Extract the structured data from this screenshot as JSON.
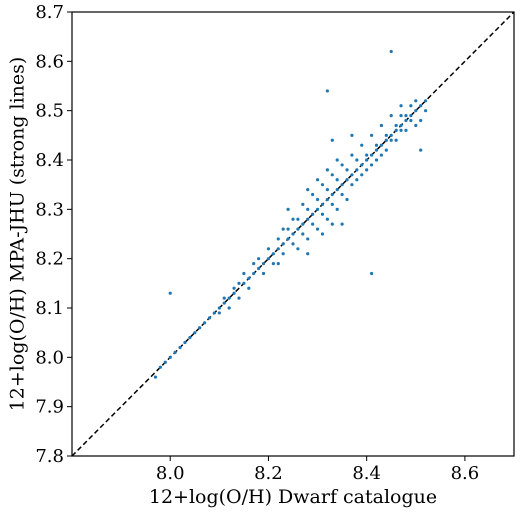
{
  "chart_data": {
    "type": "scatter",
    "xlabel": "12+log(O/H) Dwarf catalogue",
    "ylabel": "12+log(O/H) MPA-JHU (strong lines)",
    "xlim": [
      7.8,
      8.7
    ],
    "ylim": [
      7.8,
      8.7
    ],
    "xticks": [
      "8.0",
      "8.2",
      "8.4",
      "8.6"
    ],
    "yticks": [
      "7.8",
      "7.9",
      "8.0",
      "8.1",
      "8.2",
      "8.3",
      "8.4",
      "8.5",
      "8.6",
      "8.7"
    ],
    "grid": false,
    "reference_line": {
      "style": "dashed",
      "color": "#000000",
      "from": [
        7.8,
        7.8
      ],
      "to": [
        8.7,
        8.7
      ]
    },
    "series": [
      {
        "color": "#1f77b4",
        "points": [
          [
            7.97,
            7.96
          ],
          [
            7.98,
            7.98
          ],
          [
            7.99,
            7.99
          ],
          [
            8.0,
            8.0
          ],
          [
            8.01,
            8.01
          ],
          [
            8.02,
            8.02
          ],
          [
            8.03,
            8.03
          ],
          [
            8.04,
            8.04
          ],
          [
            8.05,
            8.05
          ],
          [
            8.06,
            8.06
          ],
          [
            8.07,
            8.07
          ],
          [
            8.08,
            8.08
          ],
          [
            8.09,
            8.09
          ],
          [
            8.1,
            8.1
          ],
          [
            8.11,
            8.11
          ],
          [
            8.12,
            8.12
          ],
          [
            8.13,
            8.13
          ],
          [
            8.14,
            8.15
          ],
          [
            8.15,
            8.15
          ],
          [
            8.16,
            8.16
          ],
          [
            8.17,
            8.17
          ],
          [
            8.18,
            8.18
          ],
          [
            8.19,
            8.19
          ],
          [
            8.2,
            8.2
          ],
          [
            8.21,
            8.21
          ],
          [
            8.22,
            8.22
          ],
          [
            8.23,
            8.23
          ],
          [
            8.24,
            8.24
          ],
          [
            8.25,
            8.25
          ],
          [
            8.26,
            8.26
          ],
          [
            8.27,
            8.27
          ],
          [
            8.28,
            8.28
          ],
          [
            8.29,
            8.29
          ],
          [
            8.3,
            8.3
          ],
          [
            8.31,
            8.31
          ],
          [
            8.32,
            8.32
          ],
          [
            8.33,
            8.33
          ],
          [
            8.34,
            8.34
          ],
          [
            8.35,
            8.35
          ],
          [
            8.36,
            8.36
          ],
          [
            8.37,
            8.37
          ],
          [
            8.38,
            8.38
          ],
          [
            8.39,
            8.39
          ],
          [
            8.4,
            8.4
          ],
          [
            8.41,
            8.41
          ],
          [
            8.42,
            8.42
          ],
          [
            8.43,
            8.43
          ],
          [
            8.44,
            8.44
          ],
          [
            8.45,
            8.45
          ],
          [
            8.46,
            8.46
          ],
          [
            8.47,
            8.47
          ],
          [
            8.48,
            8.48
          ],
          [
            8.49,
            8.49
          ],
          [
            8.5,
            8.5
          ],
          [
            8.51,
            8.51
          ],
          [
            8.52,
            8.52
          ],
          [
            8.2,
            8.22
          ],
          [
            8.21,
            8.19
          ],
          [
            8.22,
            8.24
          ],
          [
            8.23,
            8.21
          ],
          [
            8.24,
            8.26
          ],
          [
            8.25,
            8.23
          ],
          [
            8.26,
            8.28
          ],
          [
            8.27,
            8.25
          ],
          [
            8.28,
            8.3
          ],
          [
            8.29,
            8.27
          ],
          [
            8.3,
            8.32
          ],
          [
            8.31,
            8.29
          ],
          [
            8.32,
            8.34
          ],
          [
            8.33,
            8.31
          ],
          [
            8.34,
            8.36
          ],
          [
            8.35,
            8.33
          ],
          [
            8.36,
            8.38
          ],
          [
            8.37,
            8.35
          ],
          [
            8.38,
            8.4
          ],
          [
            8.39,
            8.37
          ],
          [
            8.4,
            8.41
          ],
          [
            8.41,
            8.39
          ],
          [
            8.42,
            8.43
          ],
          [
            8.43,
            8.41
          ],
          [
            8.44,
            8.45
          ],
          [
            8.45,
            8.44
          ],
          [
            8.46,
            8.47
          ],
          [
            8.47,
            8.46
          ],
          [
            8.48,
            8.49
          ],
          [
            8.49,
            8.48
          ],
          [
            8.25,
            8.28
          ],
          [
            8.27,
            8.31
          ],
          [
            8.29,
            8.33
          ],
          [
            8.31,
            8.35
          ],
          [
            8.33,
            8.37
          ],
          [
            8.35,
            8.39
          ],
          [
            8.26,
            8.22
          ],
          [
            8.28,
            8.24
          ],
          [
            8.3,
            8.26
          ],
          [
            8.32,
            8.28
          ],
          [
            8.34,
            8.3
          ],
          [
            8.36,
            8.32
          ],
          [
            8.3,
            8.36
          ],
          [
            8.32,
            8.38
          ],
          [
            8.34,
            8.4
          ],
          [
            8.28,
            8.34
          ],
          [
            8.33,
            8.27
          ],
          [
            8.31,
            8.25
          ],
          [
            8.18,
            8.2
          ],
          [
            8.19,
            8.17
          ],
          [
            8.17,
            8.19
          ],
          [
            8.16,
            8.14
          ],
          [
            8.15,
            8.17
          ],
          [
            8.14,
            8.12
          ],
          [
            8.13,
            8.14
          ],
          [
            8.12,
            8.1
          ],
          [
            8.11,
            8.12
          ],
          [
            8.1,
            8.09
          ],
          [
            8.22,
            8.19
          ],
          [
            8.23,
            8.26
          ],
          [
            8.38,
            8.36
          ],
          [
            8.4,
            8.38
          ],
          [
            8.42,
            8.4
          ],
          [
            8.44,
            8.42
          ],
          [
            8.46,
            8.44
          ],
          [
            8.48,
            8.46
          ],
          [
            8.37,
            8.41
          ],
          [
            8.39,
            8.43
          ],
          [
            8.41,
            8.45
          ],
          [
            8.43,
            8.47
          ],
          [
            8.45,
            8.49
          ],
          [
            8.47,
            8.51
          ],
          [
            8.5,
            8.52
          ],
          [
            8.52,
            8.5
          ],
          [
            8.51,
            8.48
          ],
          [
            8.49,
            8.51
          ],
          [
            8.5,
            8.47
          ],
          [
            8.0,
            8.13
          ],
          [
            8.32,
            8.54
          ],
          [
            8.41,
            8.17
          ],
          [
            8.45,
            8.62
          ],
          [
            8.47,
            8.49
          ],
          [
            8.51,
            8.42
          ],
          [
            8.33,
            8.44
          ],
          [
            8.28,
            8.21
          ],
          [
            8.35,
            8.27
          ],
          [
            8.37,
            8.45
          ],
          [
            8.24,
            8.3
          ]
        ]
      }
    ]
  }
}
